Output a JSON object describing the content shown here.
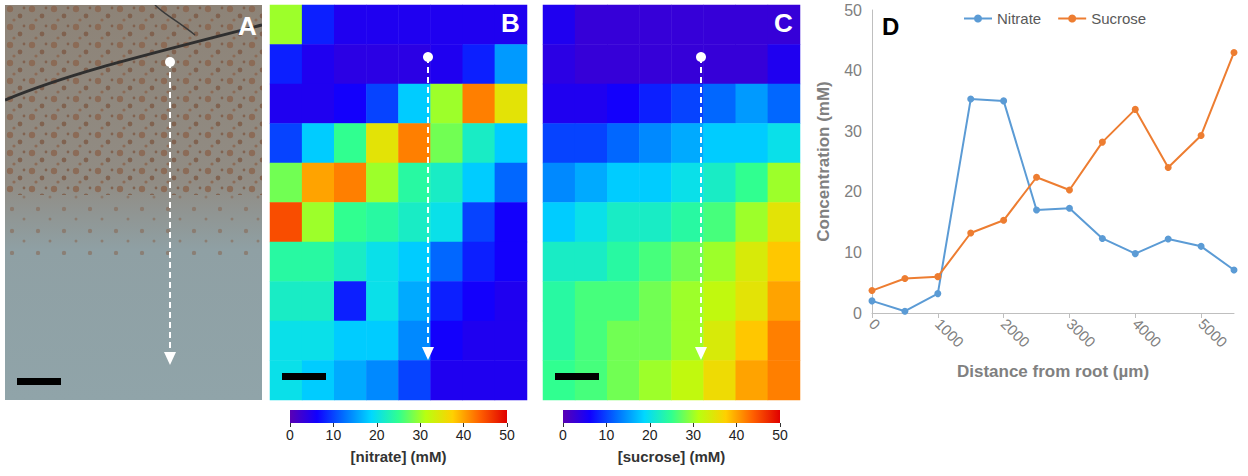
{
  "chart_data": [
    {
      "type": "image",
      "panel": "A"
    },
    {
      "type": "heatmap",
      "panel": "B",
      "tick_labels": false,
      "cells": [
        [
          30,
          8,
          5,
          5,
          5,
          5,
          5,
          5
        ],
        [
          8,
          5,
          4,
          4,
          4,
          5,
          8,
          15
        ],
        [
          5,
          5,
          6,
          10,
          18,
          30,
          42,
          35
        ],
        [
          10,
          18,
          25,
          35,
          42,
          28,
          22,
          18
        ],
        [
          28,
          40,
          42,
          30,
          24,
          22,
          18,
          12
        ],
        [
          45,
          30,
          25,
          24,
          22,
          20,
          10,
          6
        ],
        [
          24,
          24,
          22,
          20,
          18,
          12,
          8,
          6
        ],
        [
          22,
          22,
          8,
          20,
          16,
          8,
          6,
          5
        ],
        [
          20,
          20,
          18,
          18,
          14,
          6,
          5,
          5
        ],
        [
          20,
          18,
          16,
          14,
          10,
          5,
          5,
          5
        ]
      ],
      "colorbar": {
        "range": [
          0,
          50
        ],
        "ticks": [
          0,
          10,
          20,
          30,
          40,
          50
        ],
        "label": "[nitrate] (mM)"
      }
    },
    {
      "type": "heatmap",
      "panel": "C",
      "tick_labels": false,
      "cells": [
        [
          5,
          3,
          3,
          3,
          3,
          3,
          3,
          3
        ],
        [
          4,
          3,
          3,
          3,
          3,
          3,
          3,
          5
        ],
        [
          5,
          5,
          6,
          8,
          10,
          12,
          15,
          12
        ],
        [
          10,
          10,
          12,
          14,
          16,
          18,
          18,
          20
        ],
        [
          14,
          16,
          18,
          18,
          20,
          22,
          25,
          30
        ],
        [
          18,
          20,
          22,
          22,
          24,
          26,
          30,
          35
        ],
        [
          22,
          22,
          24,
          26,
          28,
          30,
          34,
          38
        ],
        [
          24,
          26,
          26,
          28,
          30,
          32,
          35,
          40
        ],
        [
          24,
          26,
          28,
          28,
          30,
          34,
          38,
          42
        ],
        [
          25,
          26,
          28,
          30,
          32,
          36,
          40,
          42
        ]
      ],
      "colorbar": {
        "range": [
          0,
          50
        ],
        "ticks": [
          0,
          10,
          20,
          30,
          40,
          50
        ],
        "label": "[sucrose] (mM)"
      }
    },
    {
      "type": "line",
      "panel": "D",
      "x": [
        0,
        500,
        1000,
        1500,
        2000,
        2500,
        3000,
        3500,
        4000,
        4500,
        5000,
        5500
      ],
      "series": [
        {
          "name": "Nitrate",
          "color": "#5b9bd5",
          "marker": "circle",
          "values": [
            2.0,
            0.3,
            3.2,
            35.3,
            35.0,
            17.0,
            17.3,
            12.3,
            9.8,
            12.2,
            11.0,
            7.1
          ]
        },
        {
          "name": "Sucrose",
          "color": "#ed7d31",
          "marker": "circle",
          "values": [
            3.7,
            5.7,
            6.0,
            13.2,
            15.3,
            22.4,
            20.3,
            28.2,
            33.6,
            24.0,
            29.3,
            43.0
          ]
        }
      ],
      "xlim": [
        0,
        5500
      ],
      "xticks": [
        0,
        1000,
        2000,
        3000,
        4000,
        5000
      ],
      "ylim": [
        0,
        50
      ],
      "yticks": [
        0,
        10,
        20,
        30,
        40,
        50
      ],
      "xlabel": "Distance from root (µm)",
      "ylabel": "Concentration (mM)",
      "legend": "top",
      "grid": false
    }
  ]
}
